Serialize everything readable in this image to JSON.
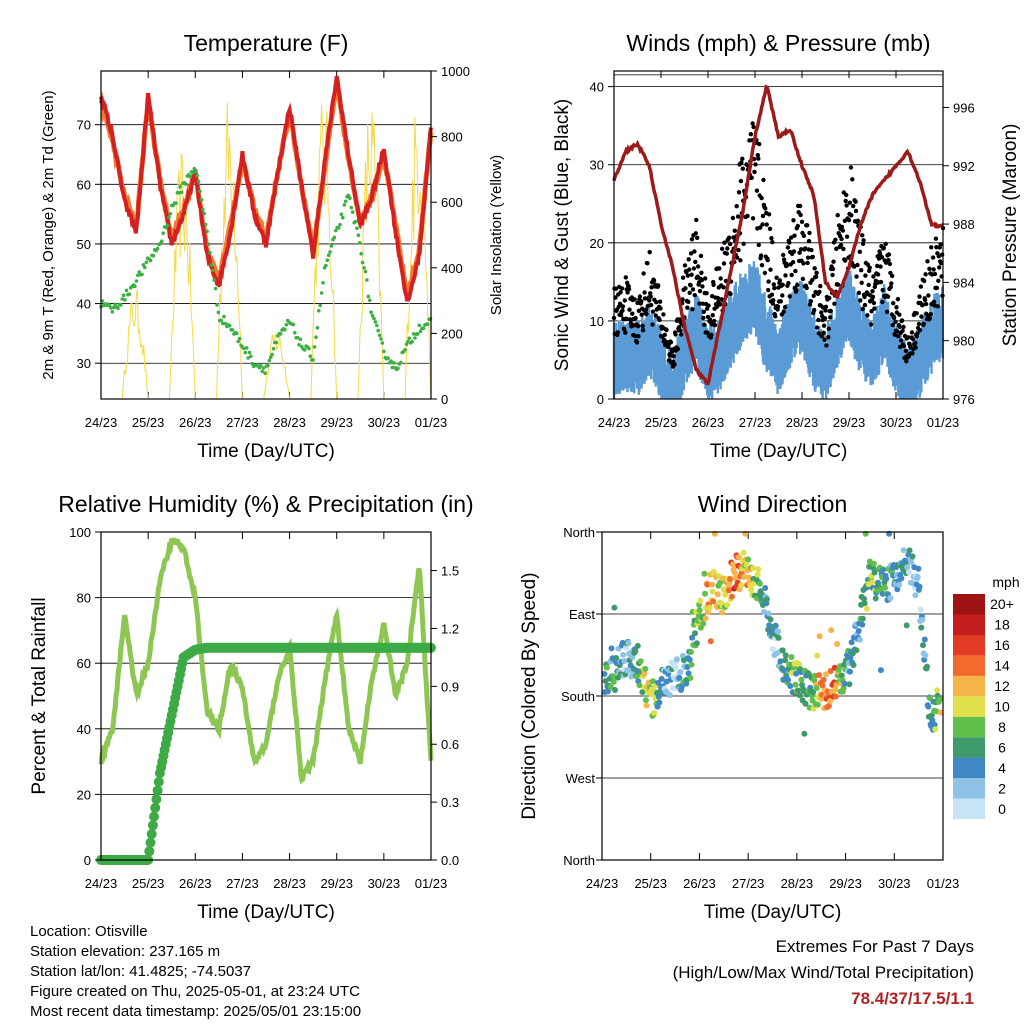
{
  "x_ticks": [
    "24/23",
    "25/23",
    "26/23",
    "27/23",
    "28/23",
    "29/23",
    "30/23",
    "01/23"
  ],
  "chart_data": [
    {
      "type": "line",
      "title": "Temperature (F)",
      "xlabel": "Time (Day/UTC)",
      "ylabel": "2m & 9m T (Red, Orange) & 2m Td (Green)",
      "y2label": "Solar Insolation (Yellow)",
      "ylim": [
        24,
        79
      ],
      "y2lim": [
        0,
        1000
      ],
      "yticks": [
        30,
        40,
        50,
        60,
        70
      ],
      "y2ticks": [
        0,
        200,
        400,
        600,
        800,
        1000
      ],
      "x": [
        0,
        0.25,
        0.5,
        0.75,
        1.0,
        1.25,
        1.5,
        1.75,
        2.0,
        2.25,
        2.5,
        2.75,
        3.0,
        3.25,
        3.5,
        3.75,
        4.0,
        4.25,
        4.5,
        4.75,
        5.0,
        5.25,
        5.5,
        5.75,
        6.0,
        6.25,
        6.5,
        6.75,
        7.0
      ],
      "series": [
        {
          "name": "2m T",
          "color": "#d42020",
          "values": [
            75,
            68,
            57,
            52,
            75,
            60,
            50,
            55,
            62,
            48,
            43,
            52,
            65,
            55,
            50,
            62,
            73,
            60,
            48,
            64,
            78,
            65,
            53,
            58,
            66,
            52,
            40,
            48,
            70
          ]
        },
        {
          "name": "9m T",
          "color": "#f07a30",
          "values": [
            74,
            67,
            58,
            53,
            74,
            61,
            51,
            56,
            62,
            49,
            44,
            53,
            64,
            56,
            51,
            62,
            72,
            60,
            49,
            63,
            77,
            64,
            54,
            58,
            65,
            53,
            41,
            49,
            69
          ]
        },
        {
          "name": "2m Td",
          "color": "#3cb043",
          "values": [
            40,
            39,
            41,
            44,
            47,
            50,
            56,
            60,
            63,
            52,
            38,
            36,
            33,
            30,
            29,
            34,
            37,
            33,
            31,
            46,
            52,
            58,
            50,
            38,
            32,
            29,
            33,
            36,
            37
          ]
        },
        {
          "name": "Solar Insolation",
          "color": "#f5d94a",
          "axis": "y2",
          "daily_peak": [
            350,
            780,
            960,
            230,
            960,
            960,
            960,
            960
          ]
        }
      ]
    },
    {
      "type": "line",
      "title": "Winds (mph) & Pressure (mb)",
      "xlabel": "Time (Day/UTC)",
      "ylabel": "Sonic Wind & Gust (Blue, Black)",
      "y2label": "Station Pressure (Maroon)",
      "ylim": [
        0,
        42
      ],
      "y2lim": [
        976,
        998.5
      ],
      "yticks": [
        0,
        10,
        20,
        30,
        40
      ],
      "y2ticks": [
        976,
        980,
        984,
        988,
        992,
        996
      ],
      "x": [
        0,
        0.25,
        0.5,
        0.75,
        1.0,
        1.25,
        1.5,
        1.75,
        2.0,
        2.25,
        2.5,
        2.75,
        3.0,
        3.25,
        3.5,
        3.75,
        4.0,
        4.25,
        4.5,
        4.75,
        5.0,
        5.25,
        5.5,
        5.75,
        6.0,
        6.25,
        6.5,
        6.75,
        7.0
      ],
      "series": [
        {
          "name": "Wind",
          "color": "#5b9bd5",
          "values": [
            6,
            7,
            6,
            9,
            5,
            2,
            7,
            10,
            5,
            7,
            10,
            13,
            14,
            9,
            6,
            10,
            12,
            7,
            5,
            10,
            13,
            9,
            7,
            11,
            6,
            3,
            6,
            9,
            11
          ]
        },
        {
          "name": "Gust",
          "color": "#000000",
          "values": [
            11,
            12,
            10,
            15,
            10,
            5,
            13,
            18,
            10,
            14,
            19,
            26,
            28,
            20,
            12,
            18,
            21,
            14,
            9,
            18,
            24,
            17,
            12,
            17,
            11,
            6,
            11,
            15,
            17
          ]
        },
        {
          "name": "Pressure",
          "color": "#9b1b1b",
          "axis": "y2",
          "values": [
            991,
            993,
            993.5,
            992,
            988,
            985,
            981,
            978,
            977,
            981,
            985,
            989,
            994,
            997.5,
            994,
            994.5,
            992,
            990,
            984,
            983,
            985,
            988,
            990,
            991,
            992,
            993,
            991,
            988,
            987.8
          ]
        }
      ]
    },
    {
      "type": "line",
      "title": "Relative Humidity (%) & Precipitation (in)",
      "xlabel": "Time (Day/UTC)",
      "ylabel": "Percent & Total Rainfall",
      "ylim": [
        0,
        100
      ],
      "y2lim": [
        0,
        1.7
      ],
      "yticks": [
        0,
        20,
        40,
        60,
        80,
        100
      ],
      "y2ticks": [
        0.0,
        0.3,
        0.6,
        0.9,
        1.2,
        1.5
      ],
      "x": [
        0,
        0.25,
        0.5,
        0.75,
        1.0,
        1.25,
        1.5,
        1.75,
        2.0,
        2.25,
        2.5,
        2.75,
        3.0,
        3.25,
        3.5,
        3.75,
        4.0,
        4.25,
        4.5,
        4.75,
        5.0,
        5.25,
        5.5,
        5.75,
        6.0,
        6.25,
        6.5,
        6.75,
        7.0
      ],
      "series": [
        {
          "name": "RH",
          "color": "#8dc653",
          "values": [
            30,
            40,
            75,
            50,
            60,
            85,
            98,
            95,
            80,
            45,
            40,
            60,
            52,
            30,
            35,
            55,
            65,
            25,
            30,
            55,
            75,
            40,
            30,
            55,
            72,
            50,
            60,
            90,
            30
          ]
        },
        {
          "name": "Precipitation",
          "color": "#3daa46",
          "axis": "y2",
          "values": [
            0,
            0,
            0,
            0,
            0,
            0.45,
            0.75,
            1.05,
            1.09,
            1.1,
            1.1,
            1.1,
            1.1,
            1.1,
            1.1,
            1.1,
            1.1,
            1.1,
            1.1,
            1.1,
            1.1,
            1.1,
            1.1,
            1.1,
            1.1,
            1.1,
            1.1,
            1.1,
            1.1
          ]
        }
      ]
    },
    {
      "type": "scatter",
      "title": "Wind Direction",
      "xlabel": "Time (Day/UTC)",
      "ylabel": "Direction (Colored By Speed)",
      "yticks": [
        "North",
        "East",
        "South",
        "West",
        "North"
      ],
      "ylim": [
        0,
        360
      ],
      "colorbar": {
        "title": "mph",
        "labels": [
          "0",
          "2",
          "4",
          "6",
          "8",
          "10",
          "12",
          "14",
          "16",
          "18",
          "20+"
        ],
        "colors": [
          "#c6e4f5",
          "#8fc3e6",
          "#3f88c5",
          "#3e9a6a",
          "#5fbf4a",
          "#dfe04a",
          "#f5b54a",
          "#f26a2e",
          "#e23b25",
          "#c41e1e",
          "#9e1414"
        ]
      },
      "x": [
        0,
        0.25,
        0.5,
        0.75,
        1.0,
        1.25,
        1.5,
        1.75,
        2.0,
        2.25,
        2.5,
        2.75,
        3.0,
        3.25,
        3.5,
        3.75,
        4.0,
        4.25,
        4.5,
        4.75,
        5.0,
        5.25,
        5.5,
        5.75,
        6.0,
        6.25,
        6.5,
        6.75,
        7.0
      ],
      "series": [
        {
          "name": "Direction",
          "values": [
            200,
            205,
            225,
            215,
            175,
            190,
            200,
            210,
            270,
            300,
            290,
            315,
            320,
            300,
            250,
            210,
            200,
            185,
            185,
            190,
            200,
            250,
            310,
            300,
            310,
            330,
            300,
            150,
            185
          ],
          "speed": [
            4,
            5,
            3,
            6,
            12,
            3,
            2,
            6,
            8,
            12,
            10,
            15,
            10,
            6,
            3,
            5,
            8,
            6,
            12,
            14,
            6,
            4,
            8,
            6,
            4,
            3,
            2,
            6,
            10
          ]
        }
      ]
    }
  ],
  "info": {
    "location": "Location: Otisville",
    "elevation": "Station elevation: 237.165 m",
    "latlon": "Station lat/lon: 41.4825; -74.5037",
    "created": "Figure created on Thu, 2025-05-01, at 23:24 UTC",
    "recent": "Most recent data timestamp: 2025/05/01 23:15:00"
  },
  "extremes": {
    "line1": "Extremes For Past 7 Days",
    "line2": "(High/Low/Max Wind/Total Precipitation)",
    "value": "78.4/37/17.5/1.1"
  }
}
